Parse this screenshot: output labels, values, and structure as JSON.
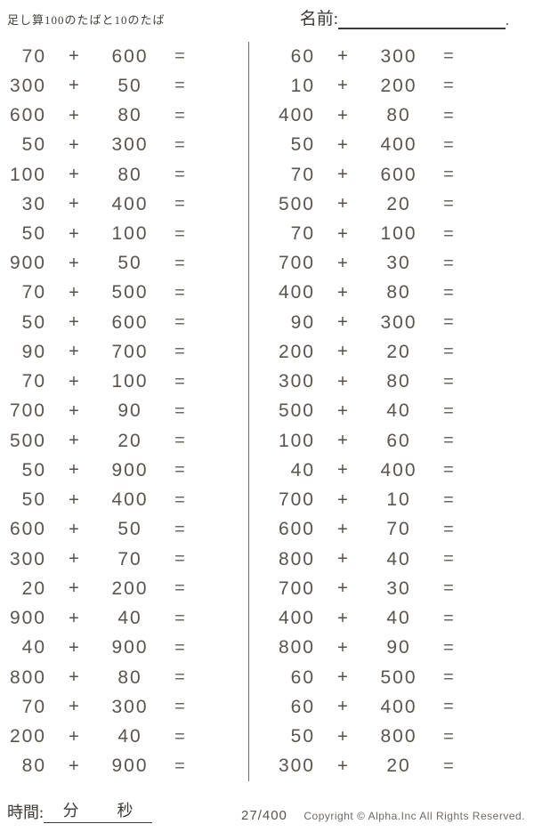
{
  "header": {
    "title": "足し算100のたばと10のたば",
    "name_label": "名前:",
    "name_line_end": "."
  },
  "symbols": {
    "plus": "+",
    "equals": "="
  },
  "problems": {
    "left": [
      {
        "a": "70",
        "b": "600"
      },
      {
        "a": "300",
        "b": "50"
      },
      {
        "a": "600",
        "b": "80"
      },
      {
        "a": "50",
        "b": "300"
      },
      {
        "a": "100",
        "b": "80"
      },
      {
        "a": "30",
        "b": "400"
      },
      {
        "a": "50",
        "b": "100"
      },
      {
        "a": "900",
        "b": "50"
      },
      {
        "a": "70",
        "b": "500"
      },
      {
        "a": "50",
        "b": "600"
      },
      {
        "a": "90",
        "b": "700"
      },
      {
        "a": "70",
        "b": "100"
      },
      {
        "a": "700",
        "b": "90"
      },
      {
        "a": "500",
        "b": "20"
      },
      {
        "a": "50",
        "b": "900"
      },
      {
        "a": "50",
        "b": "400"
      },
      {
        "a": "600",
        "b": "50"
      },
      {
        "a": "300",
        "b": "70"
      },
      {
        "a": "20",
        "b": "200"
      },
      {
        "a": "900",
        "b": "40"
      },
      {
        "a": "40",
        "b": "900"
      },
      {
        "a": "800",
        "b": "80"
      },
      {
        "a": "70",
        "b": "300"
      },
      {
        "a": "200",
        "b": "40"
      },
      {
        "a": "80",
        "b": "900"
      }
    ],
    "right": [
      {
        "a": "60",
        "b": "300"
      },
      {
        "a": "10",
        "b": "200"
      },
      {
        "a": "400",
        "b": "80"
      },
      {
        "a": "50",
        "b": "400"
      },
      {
        "a": "70",
        "b": "600"
      },
      {
        "a": "500",
        "b": "20"
      },
      {
        "a": "70",
        "b": "100"
      },
      {
        "a": "700",
        "b": "30"
      },
      {
        "a": "400",
        "b": "80"
      },
      {
        "a": "90",
        "b": "300"
      },
      {
        "a": "200",
        "b": "20"
      },
      {
        "a": "300",
        "b": "80"
      },
      {
        "a": "500",
        "b": "40"
      },
      {
        "a": "100",
        "b": "60"
      },
      {
        "a": "40",
        "b": "400"
      },
      {
        "a": "700",
        "b": "10"
      },
      {
        "a": "600",
        "b": "70"
      },
      {
        "a": "800",
        "b": "40"
      },
      {
        "a": "700",
        "b": "30"
      },
      {
        "a": "400",
        "b": "40"
      },
      {
        "a": "800",
        "b": "90"
      },
      {
        "a": "60",
        "b": "500"
      },
      {
        "a": "60",
        "b": "400"
      },
      {
        "a": "50",
        "b": "800"
      },
      {
        "a": "300",
        "b": "20"
      }
    ]
  },
  "footer": {
    "time_label": "時間:",
    "minutes_label": "分",
    "seconds_label": "秒",
    "page_number": "27/400",
    "copyright": "Copyright ©  Alpha.Inc All Rights Reserved."
  }
}
